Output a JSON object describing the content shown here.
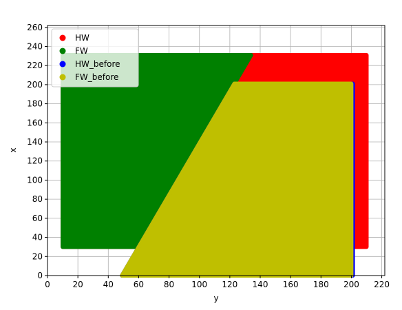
{
  "chart_data": {
    "type": "scatter",
    "xlabel": "y",
    "ylabel": "x",
    "xlim": [
      0,
      222
    ],
    "ylim": [
      0,
      262
    ],
    "x_ticks": [
      0,
      20,
      40,
      60,
      80,
      100,
      120,
      140,
      160,
      180,
      200,
      220
    ],
    "y_ticks": [
      0,
      20,
      40,
      60,
      80,
      100,
      120,
      140,
      160,
      180,
      200,
      220,
      240,
      260
    ],
    "grid": true,
    "legend_position": "top-left",
    "series": [
      {
        "name": "HW",
        "color": "#ff0000",
        "region": [
          [
            10,
            30
          ],
          [
            210,
            30
          ],
          [
            210,
            231
          ],
          [
            10,
            231
          ]
        ]
      },
      {
        "name": "FW",
        "color": "#008000",
        "region": [
          [
            10,
            30
          ],
          [
            10,
            231
          ],
          [
            134,
            231
          ],
          [
            60,
            30
          ]
        ]
      },
      {
        "name": "HW_before",
        "color": "#0000ff",
        "region": [
          [
            49,
            0
          ],
          [
            201,
            0
          ],
          [
            201,
            201
          ],
          [
            123,
            201
          ]
        ]
      },
      {
        "name": "FW_before",
        "color": "#bfbf00",
        "region": [
          [
            49,
            0
          ],
          [
            200,
            0
          ],
          [
            200,
            201
          ],
          [
            123,
            201
          ]
        ]
      }
    ]
  }
}
